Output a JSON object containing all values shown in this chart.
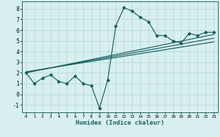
{
  "title": "",
  "xlabel": "Humidex (Indice chaleur)",
  "bg_color": "#d8efef",
  "grid_color": "#b8d8d8",
  "line_color": "#1a6060",
  "xlim": [
    -0.5,
    23.5
  ],
  "ylim": [
    -1.7,
    8.7
  ],
  "xticks": [
    0,
    1,
    2,
    3,
    4,
    5,
    6,
    7,
    8,
    9,
    10,
    11,
    12,
    13,
    14,
    15,
    16,
    17,
    18,
    19,
    20,
    21,
    22,
    23
  ],
  "yticks": [
    -1,
    0,
    1,
    2,
    3,
    4,
    5,
    6,
    7,
    8
  ],
  "curve_x": [
    0,
    1,
    2,
    3,
    4,
    5,
    6,
    7,
    8,
    9,
    10,
    11,
    12,
    13,
    14,
    15,
    16,
    17,
    18,
    19,
    20,
    21,
    22,
    23
  ],
  "curve_y": [
    2.0,
    1.0,
    1.5,
    1.8,
    1.2,
    1.0,
    1.7,
    1.0,
    0.8,
    -1.3,
    1.3,
    6.4,
    8.1,
    7.8,
    7.2,
    6.8,
    5.5,
    5.5,
    5.0,
    4.8,
    5.7,
    5.5,
    5.8,
    5.8
  ],
  "line1_x": [
    0,
    23
  ],
  "line1_y": [
    2.0,
    5.6
  ],
  "line2_x": [
    0,
    23
  ],
  "line2_y": [
    2.1,
    4.9
  ],
  "line3_x": [
    0,
    23
  ],
  "line3_y": [
    2.05,
    5.25
  ]
}
